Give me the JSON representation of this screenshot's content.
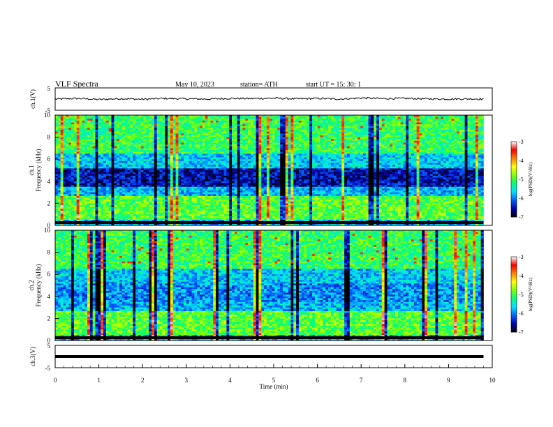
{
  "header": {
    "title": "VLF  Spectra",
    "date": "May 10, 2023",
    "station": "station= ATH",
    "start": "start  UT  =    15: 30: 1"
  },
  "chart_data": [
    {
      "type": "line",
      "name": "ch1-waveform",
      "ylabel": "ch.1(V)",
      "ylim": [
        -5,
        5
      ],
      "yticks": [
        "5",
        "-5"
      ],
      "xlim": [
        0,
        10
      ],
      "approx_level": 0,
      "x": [
        0,
        0.5,
        1,
        1.5,
        2,
        2.5,
        3,
        3.5,
        4,
        4.5,
        5,
        5.5,
        6,
        6.5,
        7,
        7.5,
        8,
        8.5,
        9,
        9.5,
        9.8
      ],
      "values": [
        0,
        0.3,
        -0.2,
        0.2,
        -0.1,
        0.3,
        0.1,
        0.0,
        0.3,
        0.2,
        0.4,
        0.1,
        0.3,
        0.0,
        0.5,
        0.2,
        0.3,
        0.1,
        0.0,
        0.1,
        0.0
      ]
    },
    {
      "type": "heatmap",
      "name": "ch1-spectrogram",
      "ylabel": "ch.1",
      "ylabel2": "Frequency  (kHz)",
      "ylim": [
        0,
        10
      ],
      "yticks": [
        "0",
        "2",
        "4",
        "6",
        "8",
        "10"
      ],
      "xlim": [
        0,
        9.8
      ],
      "colorbar": {
        "label": "log(PSD)(V²/Hz)",
        "range": [
          -7,
          -3
        ],
        "ticks": [
          "-3",
          "-4",
          "-5",
          "-6",
          "-7"
        ]
      }
    },
    {
      "type": "heatmap",
      "name": "ch2-spectrogram",
      "ylabel": "ch.2",
      "ylabel2": "Frequency  (kHz)",
      "ylim": [
        0,
        10
      ],
      "yticks": [
        "0",
        "2",
        "4",
        "6",
        "8",
        "10"
      ],
      "xlim": [
        0,
        9.8
      ],
      "colorbar": {
        "label": "log(PSD)(V²/Hz)",
        "range": [
          -7,
          -3
        ],
        "ticks": [
          "-3",
          "-4",
          "-5",
          "-6",
          "-7"
        ]
      }
    },
    {
      "type": "line",
      "name": "ch3-waveform",
      "ylabel": "ch.3(V)",
      "ylim": [
        -5,
        5
      ],
      "yticks": [
        "5",
        "-5"
      ],
      "xlim": [
        0,
        10
      ],
      "approx_level": 0,
      "x": [
        0,
        9.8
      ],
      "values": [
        0,
        0
      ]
    }
  ],
  "xaxis": {
    "label": "Time  (min)",
    "ticks": [
      "0",
      "1",
      "2",
      "3",
      "4",
      "5",
      "6",
      "7",
      "8",
      "9",
      "10"
    ]
  },
  "colors": {
    "scale": [
      "#000000",
      "#0000b0",
      "#0060ff",
      "#00e0ff",
      "#00ff80",
      "#80ff00",
      "#ffff00",
      "#ff8000",
      "#ff0000",
      "#ffffff"
    ]
  }
}
